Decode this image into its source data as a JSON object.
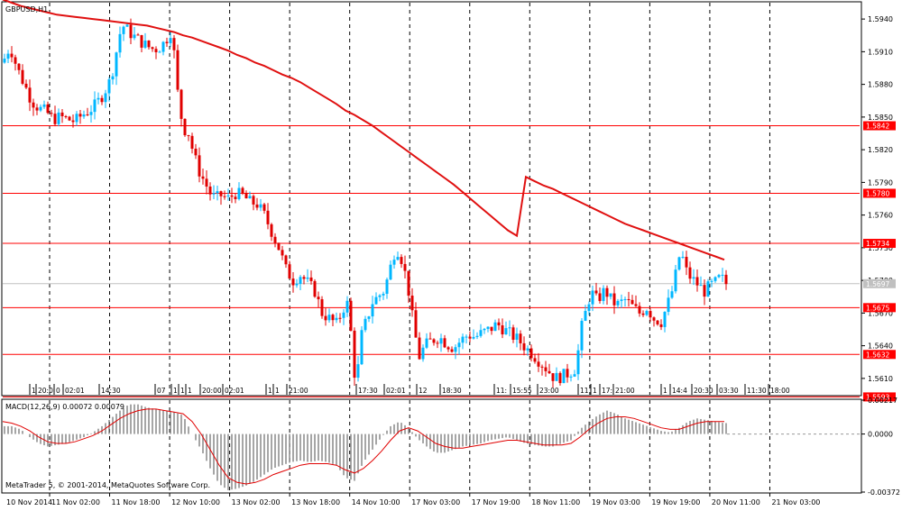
{
  "window": {
    "title": "GBPUSD,H1",
    "copyright": "MetaTrader 5, © 2001-2014, MetaQuotes Software Corp."
  },
  "colors": {
    "background": "#ffffff",
    "grid": "#000000",
    "bull_candle": "#00b7ff",
    "bear_candle": "#e00000",
    "moving_average": "#e01010",
    "level_line": "#ff0000",
    "macd_hist": "#808080",
    "macd_signal": "#e00000",
    "current_price_label": "#c0c0c0"
  },
  "chart_data": [
    {
      "type": "candlestick",
      "symbol": "GBPUSD",
      "timeframe": "H1",
      "title": "GBPUSD,H1",
      "ylim": [
        1.5595,
        1.5955
      ],
      "y_ticks": [
        "1.5940",
        "1.5910",
        "1.5880",
        "1.5850",
        "1.5820",
        "1.5790",
        "1.5760",
        "1.5730",
        "1.5700",
        "1.5670",
        "1.5640",
        "1.5610"
      ],
      "x_ticks": [
        "10 Nov 2014",
        "11 Nov 02:00",
        "11 Nov 18:00",
        "12 Nov 10:00",
        "13 Nov 02:00",
        "13 Nov 18:00",
        "14 Nov 10:00",
        "17 Nov 03:00",
        "17 Nov 19:00",
        "18 Nov 11:00",
        "19 Nov 03:00",
        "19 Nov 19:00",
        "20 Nov 11:00",
        "21 Nov 03:00"
      ],
      "grid": "vertical dashed",
      "current_price": {
        "label": "1.5697",
        "value": 1.5697
      },
      "horizontal_levels": [
        {
          "label": "1.5842",
          "value": 1.5842
        },
        {
          "label": "1.5780",
          "value": 1.578
        },
        {
          "label": "1.5734",
          "value": 1.5734
        },
        {
          "label": "1.5675",
          "value": 1.5675
        },
        {
          "label": "1.5632",
          "value": 1.5632
        },
        {
          "label": "1.5593",
          "value": 1.5593
        }
      ],
      "moving_average": {
        "x": [
          0,
          10,
          20,
          30,
          40,
          50,
          60,
          70,
          80,
          90,
          100,
          110,
          120,
          130,
          140,
          150,
          160,
          170,
          180,
          190,
          200,
          210,
          220,
          230,
          240,
          250,
          260,
          270,
          280,
          290,
          300,
          310,
          320,
          330,
          340,
          350,
          360,
          370,
          380,
          390,
          400,
          410,
          420,
          430,
          440,
          450,
          460,
          470,
          480,
          490,
          500,
          510,
          520,
          530,
          540,
          550,
          560,
          570,
          580,
          590,
          600,
          610,
          620,
          630,
          640,
          650,
          660,
          670,
          680,
          690,
          700,
          710,
          720,
          730,
          740,
          750,
          760,
          770,
          780,
          790,
          800
        ],
        "y": [
          1.5958,
          1.5955,
          1.5952,
          1.595,
          1.5948,
          1.5946,
          1.5944,
          1.5943,
          1.5942,
          1.5941,
          1.594,
          1.5939,
          1.5938,
          1.5937,
          1.5936,
          1.5935,
          1.5934,
          1.5932,
          1.593,
          1.5928,
          1.5925,
          1.5923,
          1.592,
          1.5917,
          1.5914,
          1.5911,
          1.5907,
          1.5904,
          1.59,
          1.5897,
          1.5893,
          1.5889,
          1.5886,
          1.5882,
          1.5877,
          1.5872,
          1.5867,
          1.5862,
          1.5856,
          1.5852,
          1.5847,
          1.5842,
          1.5836,
          1.583,
          1.5824,
          1.5818,
          1.5812,
          1.5806,
          1.58,
          1.5794,
          1.5788,
          1.5781,
          1.5774,
          1.5767,
          1.576,
          1.5753,
          1.5746,
          1.5741,
          1.5795,
          1.5791,
          1.5787,
          1.5784,
          1.578,
          1.5776,
          1.5772,
          1.5768,
          1.5764,
          1.576,
          1.5756,
          1.5752,
          1.5749,
          1.5746,
          1.5743,
          1.574,
          1.5737,
          1.5734,
          1.5731,
          1.5728,
          1.5725,
          1.5722,
          1.5719
        ]
      },
      "price_path": {
        "x": [
          0,
          8,
          16,
          24,
          32,
          40,
          48,
          56,
          64,
          72,
          80,
          88,
          96,
          104,
          112,
          120,
          126,
          132,
          138,
          144,
          152,
          160,
          168,
          176,
          184,
          188,
          192,
          196,
          200,
          206,
          212,
          218,
          224,
          230,
          236,
          242,
          250,
          258,
          266,
          274,
          282,
          290,
          298,
          306,
          314,
          322,
          330,
          338,
          346,
          354,
          362,
          370,
          378,
          384,
          388,
          392,
          398,
          404,
          410,
          416,
          422,
          428,
          432,
          436,
          440,
          444,
          450,
          456,
          462,
          468,
          476,
          484,
          492,
          500,
          508,
          516,
          524,
          532,
          540,
          548,
          556,
          564,
          572,
          580,
          588,
          596,
          604,
          612,
          620,
          628,
          636,
          640,
          644,
          648,
          652,
          656,
          660,
          664,
          670,
          676,
          682,
          690,
          698,
          706,
          714,
          722,
          730,
          738,
          744,
          748,
          752,
          756,
          760,
          766,
          772,
          778,
          784,
          790,
          796,
          802
        ],
        "y": [
          1.59,
          1.5915,
          1.5895,
          1.588,
          1.5865,
          1.5858,
          1.5855,
          1.5848,
          1.585,
          1.5848,
          1.5846,
          1.5852,
          1.5856,
          1.5862,
          1.5872,
          1.5885,
          1.591,
          1.5935,
          1.593,
          1.5925,
          1.592,
          1.5915,
          1.5912,
          1.5915,
          1.5925,
          1.5932,
          1.5885,
          1.586,
          1.584,
          1.5835,
          1.5815,
          1.58,
          1.579,
          1.578,
          1.5775,
          1.5778,
          1.5775,
          1.578,
          1.5778,
          1.5772,
          1.577,
          1.576,
          1.5745,
          1.573,
          1.571,
          1.57,
          1.5705,
          1.5698,
          1.569,
          1.567,
          1.5665,
          1.566,
          1.5675,
          1.568,
          1.5625,
          1.5605,
          1.565,
          1.5665,
          1.568,
          1.5685,
          1.569,
          1.5705,
          1.572,
          1.573,
          1.5725,
          1.5715,
          1.569,
          1.5655,
          1.563,
          1.564,
          1.5645,
          1.5648,
          1.5642,
          1.5638,
          1.5645,
          1.565,
          1.5648,
          1.5652,
          1.5655,
          1.566,
          1.5655,
          1.565,
          1.5645,
          1.5638,
          1.5632,
          1.5625,
          1.5618,
          1.561,
          1.5612,
          1.5615,
          1.562,
          1.565,
          1.5665,
          1.5675,
          1.569,
          1.5685,
          1.568,
          1.569,
          1.5688,
          1.568,
          1.5678,
          1.5682,
          1.5676,
          1.567,
          1.5675,
          1.5665,
          1.5662,
          1.568,
          1.5695,
          1.5715,
          1.5728,
          1.5712,
          1.5705,
          1.57,
          1.5695,
          1.569,
          1.5695,
          1.5698,
          1.5703,
          1.5697
        ]
      }
    },
    {
      "type": "bar",
      "title": "MACD(12,26,9) 0.00072 0.00079",
      "indicator": "MACD(12,26,9)",
      "macd_value": "0.00072",
      "signal_value": "0.00079",
      "ylim": [
        -0.00372,
        0.00217
      ],
      "y_ticks": [
        "0.00217",
        "0.0000",
        "-0.00372"
      ],
      "histogram": {
        "x": [
          0,
          10,
          20,
          30,
          40,
          50,
          60,
          70,
          80,
          90,
          100,
          110,
          120,
          130,
          140,
          150,
          160,
          170,
          180,
          190,
          200,
          210,
          220,
          230,
          240,
          250,
          260,
          270,
          280,
          290,
          300,
          310,
          320,
          330,
          340,
          350,
          360,
          370,
          380,
          390,
          400,
          410,
          420,
          430,
          440,
          450,
          460,
          470,
          480,
          490,
          500,
          510,
          520,
          530,
          540,
          550,
          560,
          570,
          580,
          590,
          600,
          610,
          620,
          630,
          640,
          650,
          660,
          670,
          680,
          690,
          700,
          710,
          720,
          730,
          740,
          750,
          760,
          770,
          780,
          790,
          800
        ],
        "y": [
          0.0005,
          0.0005,
          0.0003,
          -0.0002,
          -0.0006,
          -0.0008,
          -0.0007,
          -0.0006,
          -0.0004,
          -0.0002,
          0.0001,
          0.0005,
          0.001,
          0.0015,
          0.0019,
          0.0019,
          0.0017,
          0.0016,
          0.0015,
          0.0014,
          0.0012,
          0.0,
          -0.001,
          -0.0022,
          -0.0032,
          -0.0036,
          -0.0035,
          -0.0033,
          -0.003,
          -0.0026,
          -0.0022,
          -0.002,
          -0.0018,
          -0.0017,
          -0.0018,
          -0.0017,
          -0.0018,
          -0.002,
          -0.0028,
          -0.003,
          -0.0018,
          -0.001,
          -0.0002,
          0.0005,
          0.0008,
          0.0004,
          -0.0003,
          -0.0008,
          -0.0012,
          -0.0012,
          -0.001,
          -0.0008,
          -0.0007,
          -0.0006,
          -0.0004,
          -0.0003,
          -0.0002,
          -0.0004,
          -0.0006,
          -0.0007,
          -0.0008,
          -0.0008,
          -0.0006,
          -0.0004,
          0.0003,
          0.0008,
          0.0012,
          0.0015,
          0.0013,
          0.001,
          0.0008,
          0.0006,
          0.0004,
          0.0002,
          0.0001,
          0.0004,
          0.0008,
          0.001,
          0.0009,
          0.0008,
          0.0007
        ]
      },
      "signal": {
        "x": [
          0,
          10,
          20,
          30,
          40,
          50,
          60,
          70,
          80,
          90,
          100,
          110,
          120,
          130,
          140,
          150,
          160,
          170,
          180,
          190,
          200,
          210,
          220,
          230,
          240,
          250,
          260,
          270,
          280,
          290,
          300,
          310,
          320,
          330,
          340,
          350,
          360,
          370,
          380,
          390,
          400,
          410,
          420,
          430,
          440,
          450,
          460,
          470,
          480,
          490,
          500,
          510,
          520,
          530,
          540,
          550,
          560,
          570,
          580,
          590,
          600,
          610,
          620,
          630,
          640,
          650,
          660,
          670,
          680,
          690,
          700,
          710,
          720,
          730,
          740,
          750,
          760,
          770,
          780,
          790,
          800
        ],
        "y": [
          0.0008,
          0.0007,
          0.0005,
          0.0002,
          -0.0002,
          -0.0005,
          -0.0006,
          -0.0006,
          -0.0005,
          -0.0003,
          -0.0001,
          0.0002,
          0.0006,
          0.001,
          0.0013,
          0.0015,
          0.0016,
          0.0016,
          0.0015,
          0.0014,
          0.0013,
          0.0008,
          0.0,
          -0.001,
          -0.002,
          -0.0028,
          -0.0031,
          -0.0032,
          -0.0031,
          -0.0029,
          -0.0026,
          -0.0024,
          -0.0022,
          -0.002,
          -0.0019,
          -0.0019,
          -0.0019,
          -0.002,
          -0.0023,
          -0.0025,
          -0.0022,
          -0.0017,
          -0.0011,
          -0.0004,
          0.0002,
          0.0004,
          0.0002,
          -0.0002,
          -0.0006,
          -0.0008,
          -0.0009,
          -0.0009,
          -0.0008,
          -0.0007,
          -0.0006,
          -0.0005,
          -0.0004,
          -0.0004,
          -0.0005,
          -0.0006,
          -0.0007,
          -0.0007,
          -0.0007,
          -0.0006,
          -0.0002,
          0.0003,
          0.0007,
          0.001,
          0.0011,
          0.0011,
          0.001,
          0.0008,
          0.0006,
          0.0004,
          0.0003,
          0.0003,
          0.0005,
          0.0007,
          0.0008,
          0.0008,
          0.0008
        ]
      }
    }
  ],
  "event_markers": [
    "1",
    "20:0",
    "0",
    "02:01",
    "14:30",
    "07",
    "1",
    "1",
    "1",
    "20:00",
    "02:01",
    "1",
    "1",
    "21:00",
    "17:30",
    "02:01",
    "12",
    "18:30",
    "11:",
    "15:55",
    "23:00",
    "11",
    "1",
    "17:",
    "21:00",
    "1",
    "14:4",
    "20:30",
    "03:30",
    "11:30",
    "18:00"
  ]
}
